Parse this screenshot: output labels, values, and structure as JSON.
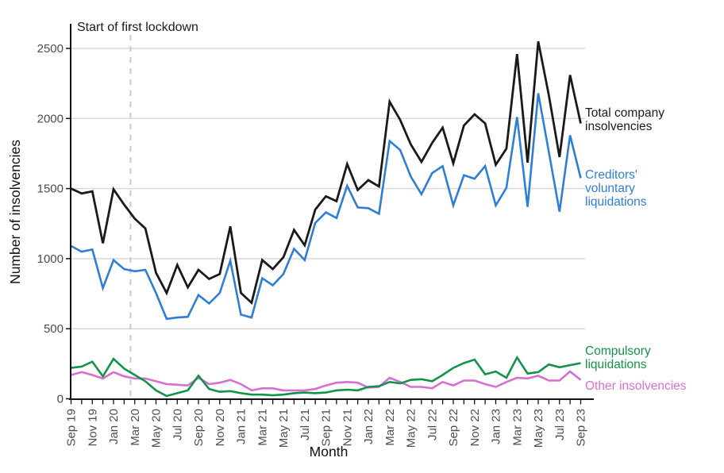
{
  "figure": {
    "annotation": "Start of first lockdown",
    "ylabel": "Number of insolvencies",
    "xlabel": "Month"
  },
  "chart_data": {
    "type": "line",
    "x": [
      "Sep 19",
      "Oct 19",
      "Nov 19",
      "Dec 19",
      "Jan 20",
      "Feb 20",
      "Mar 20",
      "Apr 20",
      "May 20",
      "Jun 20",
      "Jul 20",
      "Aug 20",
      "Sep 20",
      "Oct 20",
      "Nov 20",
      "Dec 20",
      "Jan 21",
      "Feb 21",
      "Mar 21",
      "Apr 21",
      "May 21",
      "Jun 21",
      "Jul 21",
      "Aug 21",
      "Sep 21",
      "Oct 21",
      "Nov 21",
      "Dec 21",
      "Jan 22",
      "Feb 22",
      "Mar 22",
      "Apr 22",
      "May 22",
      "Jun 22",
      "Jul 22",
      "Aug 22",
      "Sep 22",
      "Oct 22",
      "Nov 22",
      "Dec 22",
      "Jan 23",
      "Feb 23",
      "Mar 23",
      "Apr 23",
      "May 23",
      "Jun 23",
      "Jul 23",
      "Aug 23",
      "Sep 23"
    ],
    "x_tick_label_step": 2,
    "xlabel": "Month",
    "ylabel": "Number of insolvencies",
    "ylim": [
      0,
      2600
    ],
    "yticks": [
      0,
      500,
      1000,
      1500,
      2000,
      2500
    ],
    "grid": "horizontal",
    "annotation": {
      "text": "Start of first lockdown",
      "type": "vertical-dashed-line",
      "x_position": "between Feb 20 and Mar 20 (23 March 2020)",
      "x_month_index": 5.6
    },
    "legend_position": "right-edge-direct-labels",
    "series": [
      {
        "name": "Total company insolvencies",
        "label_lines": [
          "Total company",
          "insolvencies"
        ],
        "color": "#1a1a1a",
        "values": [
          1500,
          1465,
          1480,
          1110,
          1495,
          1385,
          1285,
          1215,
          900,
          755,
          955,
          795,
          920,
          855,
          890,
          1230,
          755,
          685,
          990,
          925,
          1010,
          1205,
          1095,
          1350,
          1445,
          1410,
          1675,
          1490,
          1560,
          1515,
          2120,
          1990,
          1815,
          1690,
          1825,
          1935,
          1680,
          1950,
          2030,
          1965,
          1670,
          1785,
          2460,
          1685,
          2550,
          2165,
          1725,
          2310,
          1965
        ]
      },
      {
        "name": "Creditors' voluntary liquidations",
        "label_lines": [
          "Creditors'",
          "voluntary",
          "liquidations"
        ],
        "color": "#2e7ed8",
        "values": [
          1090,
          1050,
          1065,
          790,
          990,
          925,
          910,
          920,
          755,
          570,
          580,
          585,
          740,
          680,
          755,
          985,
          600,
          580,
          860,
          810,
          890,
          1070,
          990,
          1255,
          1330,
          1290,
          1520,
          1365,
          1360,
          1320,
          1840,
          1775,
          1585,
          1460,
          1610,
          1660,
          1380,
          1595,
          1570,
          1660,
          1380,
          1505,
          2010,
          1370,
          2180,
          1760,
          1335,
          1880,
          1575
        ]
      },
      {
        "name": "Compulsory liquidations",
        "label_lines": [
          "Compulsory",
          "liquidations"
        ],
        "color": "#11934a",
        "values": [
          220,
          230,
          265,
          160,
          285,
          215,
          170,
          125,
          60,
          20,
          40,
          60,
          165,
          70,
          50,
          55,
          40,
          30,
          30,
          25,
          30,
          40,
          45,
          40,
          45,
          60,
          65,
          60,
          85,
          90,
          120,
          110,
          135,
          140,
          125,
          170,
          220,
          255,
          280,
          175,
          195,
          150,
          295,
          180,
          190,
          245,
          225,
          240,
          255
        ]
      },
      {
        "name": "Other insolvencies",
        "label_lines": [
          "Other insolvencies"
        ],
        "color": "#d66fd1",
        "values": [
          170,
          190,
          170,
          145,
          190,
          160,
          145,
          145,
          125,
          105,
          100,
          95,
          150,
          105,
          115,
          135,
          105,
          60,
          75,
          75,
          60,
          60,
          60,
          70,
          95,
          115,
          120,
          115,
          80,
          85,
          150,
          120,
          85,
          85,
          75,
          120,
          95,
          130,
          130,
          105,
          85,
          120,
          150,
          145,
          165,
          130,
          130,
          195,
          135
        ]
      }
    ]
  }
}
